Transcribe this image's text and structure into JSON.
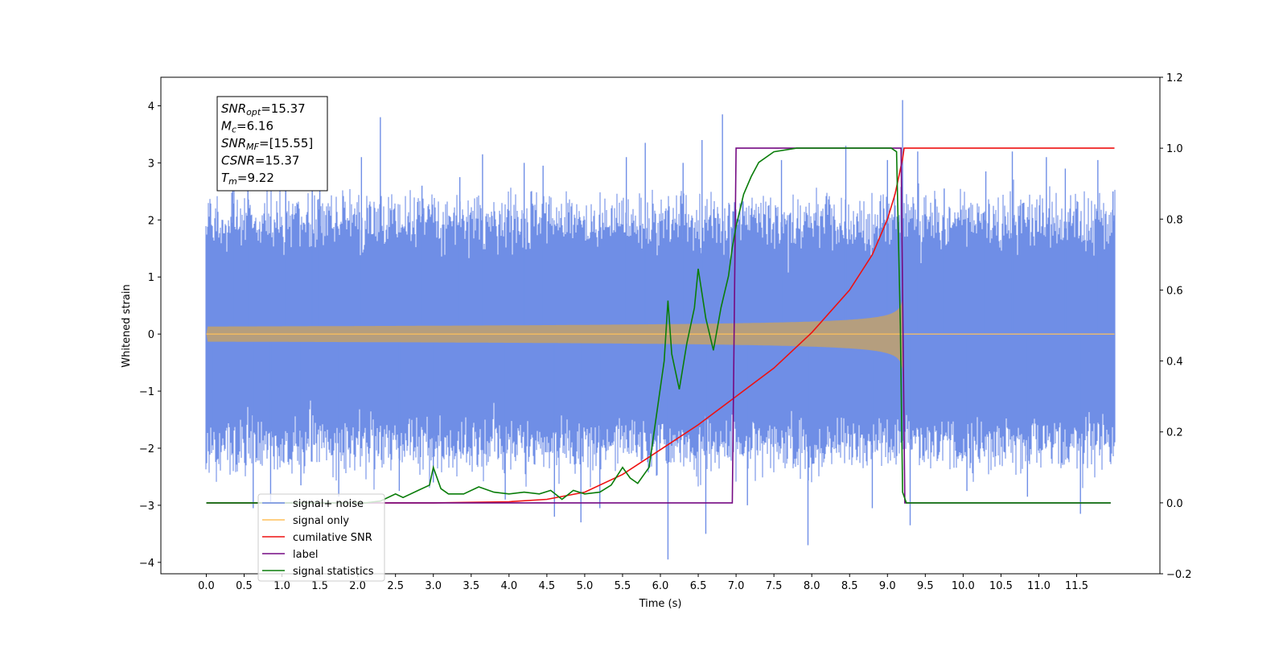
{
  "chart_data": {
    "type": "line",
    "xlabel": "Time (s)",
    "ylabel": "Whitened strain",
    "xlim": [
      -0.6,
      12.6
    ],
    "ylim_left": [
      -4.2,
      4.5
    ],
    "ylim_right": [
      -0.2,
      1.2
    ],
    "x_ticks": [
      "0.0",
      "0.5",
      "1.0",
      "1.5",
      "2.0",
      "2.5",
      "3.0",
      "3.5",
      "4.0",
      "4.5",
      "5.0",
      "5.5",
      "6.0",
      "6.5",
      "7.0",
      "7.5",
      "8.0",
      "8.5",
      "9.0",
      "9.5",
      "10.0",
      "10.5",
      "11.0",
      "11.5"
    ],
    "y_ticks_left": [
      "4",
      "3",
      "2",
      "1",
      "0",
      "−1",
      "−2",
      "−3",
      "−4"
    ],
    "y_ticks_right": [
      "1.2",
      "1.0",
      "0.8",
      "0.6",
      "0.4",
      "0.2",
      "0.0",
      "−0.2"
    ],
    "grid": false,
    "legend_position": "lower-left",
    "annotation": {
      "lines": [
        {
          "sym": "SNR",
          "sub": "opt",
          "value": "=15.37"
        },
        {
          "sym": "M",
          "sub": "c",
          "value": "=6.16"
        },
        {
          "sym": "SNR",
          "sub": "MF",
          "value": "=[15.55]"
        },
        {
          "sym": "CSNR",
          "sub": "",
          "value": "=15.37"
        },
        {
          "sym": "T",
          "sub": "m",
          "value": "=9.22"
        }
      ]
    },
    "series": [
      {
        "name": "signal+ noise",
        "axis": "left",
        "color": "#6f8ee6",
        "noise_envelope": {
          "t_start": 0.0,
          "t_end": 12.0,
          "typical_max": 2.3,
          "typical_min": -2.3
        },
        "spikes": [
          [
            0.02,
            1.55
          ],
          [
            0.08,
            -1.95
          ],
          [
            0.35,
            3.15
          ],
          [
            0.55,
            2.55
          ],
          [
            0.62,
            -3.05
          ],
          [
            0.85,
            -2.95
          ],
          [
            1.05,
            3.35
          ],
          [
            1.25,
            -2.65
          ],
          [
            1.4,
            2.65
          ],
          [
            1.5,
            3.15
          ],
          [
            1.75,
            -2.85
          ],
          [
            2.05,
            3.1
          ],
          [
            2.3,
            3.8
          ],
          [
            2.55,
            -2.75
          ],
          [
            2.85,
            2.6
          ],
          [
            3.0,
            -2.6
          ],
          [
            3.35,
            2.75
          ],
          [
            3.65,
            3.15
          ],
          [
            3.95,
            -2.9
          ],
          [
            4.2,
            3.0
          ],
          [
            4.45,
            2.95
          ],
          [
            4.6,
            -3.2
          ],
          [
            4.95,
            -3.3
          ],
          [
            5.2,
            -3.05
          ],
          [
            5.55,
            3.1
          ],
          [
            5.8,
            3.35
          ],
          [
            6.1,
            -3.95
          ],
          [
            6.3,
            3.0
          ],
          [
            6.55,
            3.4
          ],
          [
            6.6,
            -3.5
          ],
          [
            6.82,
            3.85
          ],
          [
            7.15,
            -3.0
          ],
          [
            7.6,
            3.05
          ],
          [
            7.95,
            -3.7
          ],
          [
            8.45,
            3.3
          ],
          [
            8.8,
            -3.05
          ],
          [
            9.0,
            3.05
          ],
          [
            9.2,
            4.1
          ],
          [
            9.3,
            -3.35
          ],
          [
            9.4,
            3.2
          ],
          [
            9.75,
            2.55
          ],
          [
            10.05,
            -2.75
          ],
          [
            10.3,
            2.85
          ],
          [
            10.65,
            3.2
          ],
          [
            10.85,
            -2.85
          ],
          [
            11.1,
            3.1
          ],
          [
            11.35,
            2.9
          ],
          [
            11.55,
            -3.15
          ],
          [
            11.78,
            3.05
          ],
          [
            11.98,
            2.5
          ]
        ]
      },
      {
        "name": "signal only",
        "axis": "left",
        "color": "#ffc05a",
        "chirp": {
          "t_start": 0.0,
          "t_merge": 9.22,
          "t_end": 12.0,
          "amp_at_4s": 0.03,
          "amp_at_6s": 0.08,
          "amp_at_8s": 0.22,
          "amp_at_9s": 0.45,
          "amp_peak": 0.95
        }
      },
      {
        "name": "cumilative SNR",
        "axis": "right",
        "color": "#ee1111",
        "points": [
          [
            0.0,
            0.0
          ],
          [
            3.0,
            0.0
          ],
          [
            4.0,
            0.003
          ],
          [
            4.5,
            0.01
          ],
          [
            5.0,
            0.03
          ],
          [
            5.5,
            0.08
          ],
          [
            6.0,
            0.15
          ],
          [
            6.5,
            0.22
          ],
          [
            7.0,
            0.3
          ],
          [
            7.5,
            0.38
          ],
          [
            8.0,
            0.48
          ],
          [
            8.5,
            0.6
          ],
          [
            8.8,
            0.7
          ],
          [
            9.0,
            0.8
          ],
          [
            9.1,
            0.87
          ],
          [
            9.2,
            0.97
          ],
          [
            9.22,
            1.0
          ],
          [
            12.0,
            1.0
          ]
        ]
      },
      {
        "name": "label",
        "axis": "right",
        "color": "#750a83",
        "points": [
          [
            0.0,
            0.0
          ],
          [
            6.95,
            0.0
          ],
          [
            7.0,
            1.0
          ],
          [
            9.18,
            1.0
          ],
          [
            9.23,
            0.0
          ],
          [
            11.95,
            0.0
          ]
        ]
      },
      {
        "name": "signal statistics",
        "axis": "right",
        "color": "#0a7d0a",
        "points": [
          [
            0.0,
            0.0
          ],
          [
            2.1,
            0.0
          ],
          [
            2.3,
            0.005
          ],
          [
            2.5,
            0.025
          ],
          [
            2.6,
            0.015
          ],
          [
            2.8,
            0.035
          ],
          [
            2.95,
            0.05
          ],
          [
            3.0,
            0.1
          ],
          [
            3.1,
            0.04
          ],
          [
            3.2,
            0.025
          ],
          [
            3.4,
            0.025
          ],
          [
            3.6,
            0.045
          ],
          [
            3.8,
            0.03
          ],
          [
            4.0,
            0.025
          ],
          [
            4.2,
            0.03
          ],
          [
            4.4,
            0.025
          ],
          [
            4.55,
            0.035
          ],
          [
            4.7,
            0.01
          ],
          [
            4.85,
            0.035
          ],
          [
            5.0,
            0.025
          ],
          [
            5.2,
            0.03
          ],
          [
            5.35,
            0.05
          ],
          [
            5.5,
            0.1
          ],
          [
            5.6,
            0.07
          ],
          [
            5.7,
            0.055
          ],
          [
            5.85,
            0.1
          ],
          [
            5.95,
            0.25
          ],
          [
            6.05,
            0.4
          ],
          [
            6.1,
            0.57
          ],
          [
            6.15,
            0.42
          ],
          [
            6.25,
            0.32
          ],
          [
            6.35,
            0.45
          ],
          [
            6.45,
            0.55
          ],
          [
            6.5,
            0.66
          ],
          [
            6.6,
            0.52
          ],
          [
            6.7,
            0.43
          ],
          [
            6.8,
            0.55
          ],
          [
            6.9,
            0.64
          ],
          [
            6.95,
            0.72
          ],
          [
            7.0,
            0.78
          ],
          [
            7.1,
            0.87
          ],
          [
            7.2,
            0.92
          ],
          [
            7.3,
            0.96
          ],
          [
            7.5,
            0.99
          ],
          [
            7.8,
            1.0
          ],
          [
            9.05,
            1.0
          ],
          [
            9.12,
            0.99
          ],
          [
            9.17,
            0.5
          ],
          [
            9.2,
            0.03
          ],
          [
            9.25,
            0.0
          ],
          [
            11.95,
            0.0
          ]
        ]
      }
    ]
  }
}
